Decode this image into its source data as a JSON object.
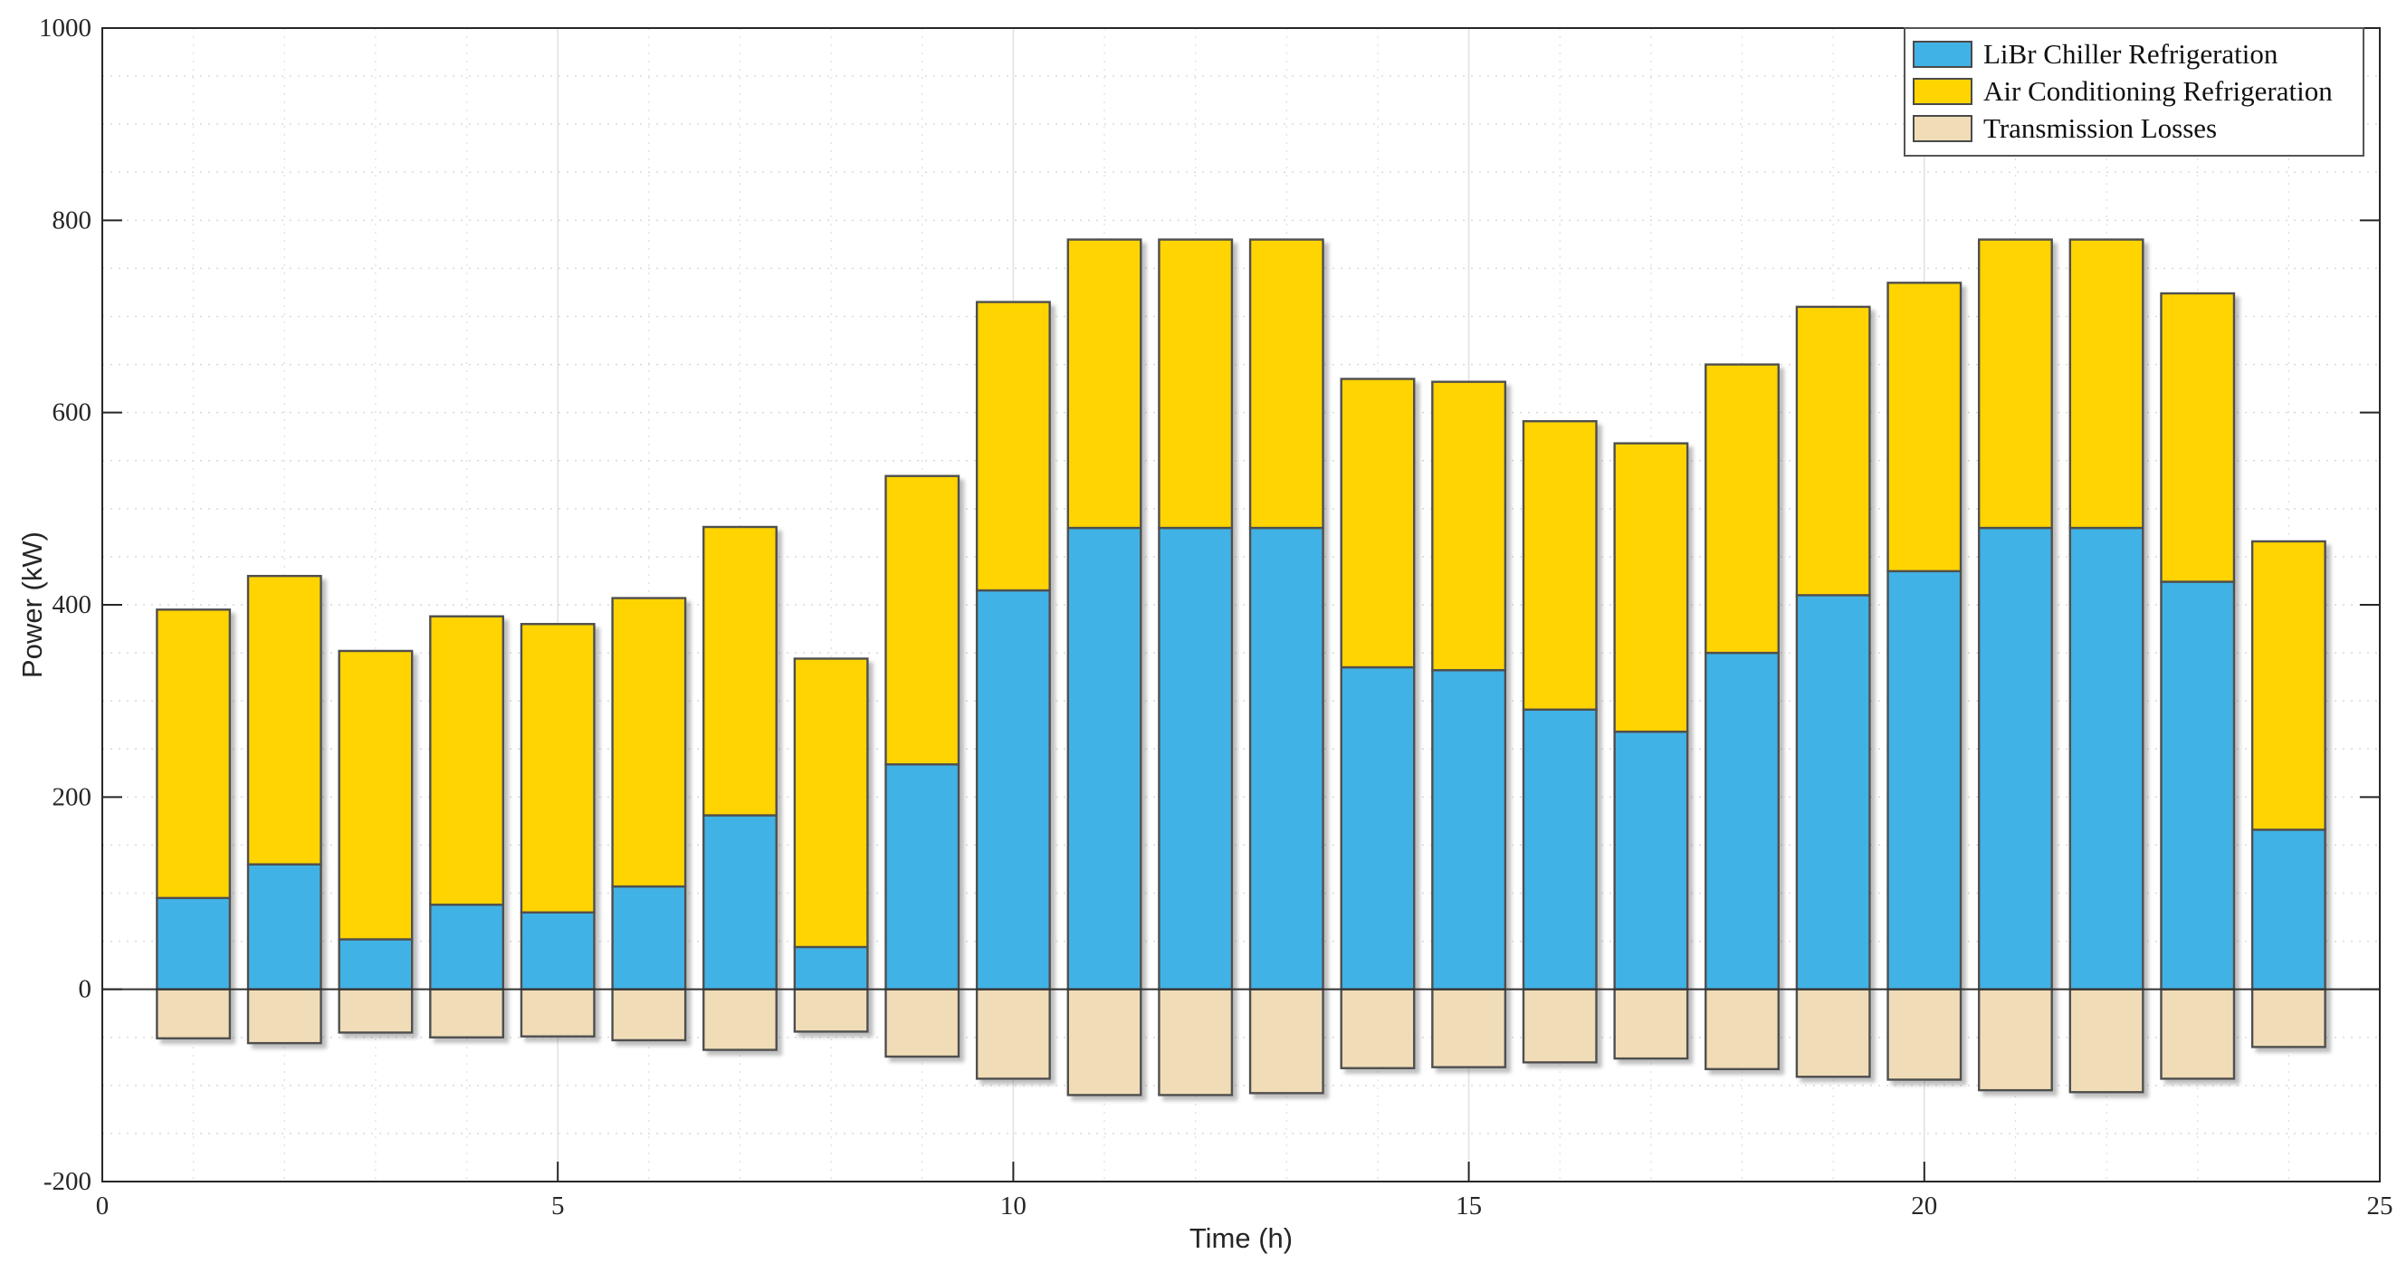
{
  "chart_data": {
    "type": "bar",
    "stacked": true,
    "title": "",
    "xlabel": "Time (h)",
    "ylabel": "Power (kW)",
    "x": [
      1,
      2,
      3,
      4,
      5,
      6,
      7,
      8,
      9,
      10,
      11,
      12,
      13,
      14,
      15,
      16,
      17,
      18,
      19,
      20,
      21,
      22,
      23,
      24
    ],
    "xlim": [
      0,
      25
    ],
    "ylim": [
      -200,
      1000
    ],
    "xticks": [
      0,
      5,
      10,
      15,
      20,
      25
    ],
    "yticks": [
      -200,
      0,
      200,
      400,
      600,
      800,
      1000
    ],
    "grid": "minor dotted grid on, 50 kW horizontal spacing, 1 h vertical spacing",
    "legend_position": "top-right inside plot, boxed",
    "bar_width_fraction": 0.8,
    "bar_edge_color": "#4f4f4f",
    "zero_line_color": "#333333",
    "axis_color": "#262626",
    "series": [
      {
        "name": "LiBr Chiller Refrigeration",
        "color": "#41B2E5",
        "values": [
          95,
          130,
          52,
          88,
          80,
          107,
          181,
          44,
          234,
          415,
          480,
          480,
          480,
          335,
          332,
          291,
          268,
          350,
          410,
          435,
          480,
          480,
          424,
          166
        ]
      },
      {
        "name": "Air Conditioning Refrigeration",
        "color": "#FFD400",
        "values": [
          300,
          300,
          300,
          300,
          300,
          300,
          300,
          300,
          300,
          300,
          300,
          300,
          300,
          300,
          300,
          300,
          300,
          300,
          300,
          300,
          300,
          300,
          300,
          300
        ]
      },
      {
        "name": "Transmission Losses",
        "color": "#F0DDB7",
        "values": [
          -51,
          -56,
          -45,
          -50,
          -49,
          -53,
          -63,
          -44,
          -70,
          -93,
          -110,
          -110,
          -108,
          -82,
          -81,
          -76,
          -72,
          -83,
          -91,
          -94,
          -105,
          -107,
          -93,
          -60
        ]
      }
    ]
  }
}
